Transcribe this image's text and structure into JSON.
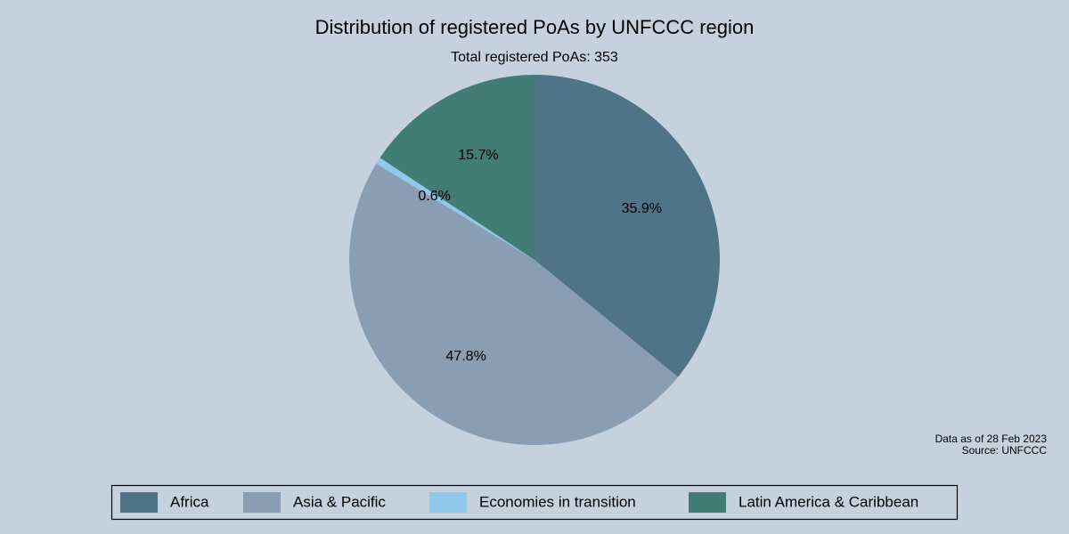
{
  "chart_data": {
    "type": "pie",
    "title": "Distribution of registered PoAs by UNFCCC region",
    "subtitle": "Total registered PoAs: 353",
    "categories": [
      "Africa",
      "Asia & Pacific",
      "Economies in transition",
      "Latin America & Caribbean"
    ],
    "values": [
      35.9,
      47.8,
      0.6,
      15.7
    ],
    "value_labels": [
      "35.9%",
      "47.8%",
      "0.6%",
      "15.7%"
    ],
    "colors": [
      "#4f7387",
      "#8a9eb3",
      "#8ec8ea",
      "#427d75"
    ],
    "notes": [
      "Data as of 28 Feb 2023",
      "Source: UNFCCC"
    ],
    "legend": "bottom"
  }
}
